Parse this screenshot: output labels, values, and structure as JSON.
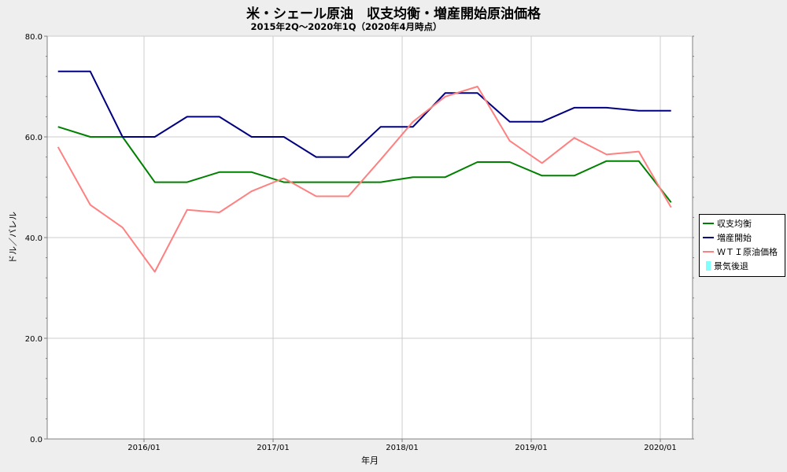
{
  "chart_data": {
    "type": "line",
    "title": "米・シェール原油　収支均衡・増産開始原油価格",
    "subtitle": "2015年2Q～2020年1Q（2020年4月時点）",
    "xlabel": "年月",
    "ylabel": "ドル／バレル",
    "ylim": [
      0,
      80
    ],
    "yticks": [
      "0.0",
      "20.0",
      "40.0",
      "60.0",
      "80.0"
    ],
    "xticks": [
      "2016/01",
      "2017/01",
      "2018/01",
      "2019/01",
      "2020/01"
    ],
    "x": [
      "2015/05",
      "2015/08",
      "2015/11",
      "2016/02",
      "2016/05",
      "2016/08",
      "2016/11",
      "2017/02",
      "2017/05",
      "2017/08",
      "2017/11",
      "2018/02",
      "2018/05",
      "2018/08",
      "2018/11",
      "2019/02",
      "2019/05",
      "2019/08",
      "2019/11",
      "2020/02"
    ],
    "grid": true,
    "legend_position": "right",
    "series": [
      {
        "name": "収支均衡",
        "color": "#008000",
        "values": [
          62,
          60,
          60,
          51,
          51,
          53,
          53,
          51,
          51,
          51,
          51,
          52,
          52,
          55,
          55,
          52.3,
          52.3,
          55.2,
          55.2,
          47
        ]
      },
      {
        "name": "増産開始",
        "color": "#000080",
        "values": [
          73,
          73,
          60,
          60,
          64,
          64,
          60,
          60,
          56,
          56,
          62,
          62,
          68.7,
          68.7,
          63,
          63,
          65.8,
          65.8,
          65.2,
          65.2
        ]
      },
      {
        "name": "ＷＴＩ原油価格",
        "color": "#ff8080",
        "values": [
          58,
          46.5,
          42,
          33.2,
          45.5,
          45,
          49.2,
          51.8,
          48.2,
          48.2,
          55.5,
          63,
          68,
          70,
          59.2,
          54.8,
          59.8,
          56.5,
          57.1,
          46
        ]
      }
    ],
    "extra_legend": [
      {
        "name": "景気後退",
        "color": "#80ffff"
      }
    ]
  }
}
